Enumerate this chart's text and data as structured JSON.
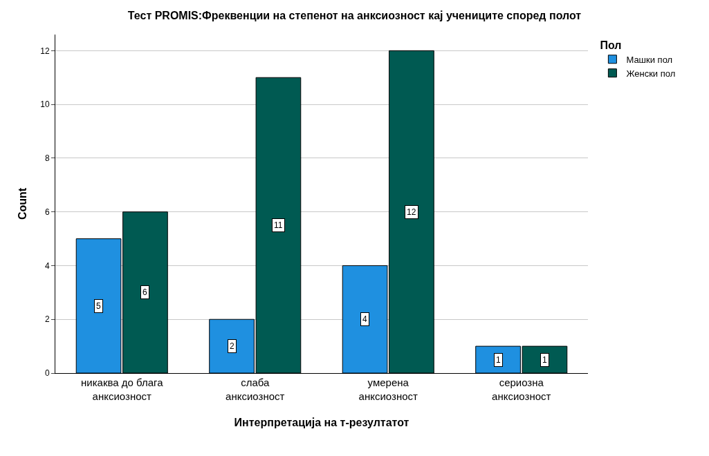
{
  "chart_data": {
    "type": "bar",
    "title": "Тест PROMIS:Фреквенции на степенот на анксиозност кај учениците според полот",
    "xlabel": "Интерпретација на т-резултатот",
    "ylabel": "Count",
    "legend_title": "Пол",
    "categories": [
      "никаква до блага анксиозност",
      "слаба анксиозност",
      "умерена анксиозност",
      "сериозна анксиозност"
    ],
    "series": [
      {
        "name": "Машки пол",
        "color": "#1f90e0",
        "values": [
          5,
          2,
          4,
          1
        ]
      },
      {
        "name": "Женски пол",
        "color": "#005a52",
        "values": [
          6,
          11,
          12,
          1
        ]
      }
    ],
    "ylim": [
      0,
      12.6
    ],
    "yticks": [
      0,
      2,
      4,
      6,
      8,
      10,
      12
    ],
    "grid": "y",
    "legend": "top right",
    "data_labels": true
  }
}
